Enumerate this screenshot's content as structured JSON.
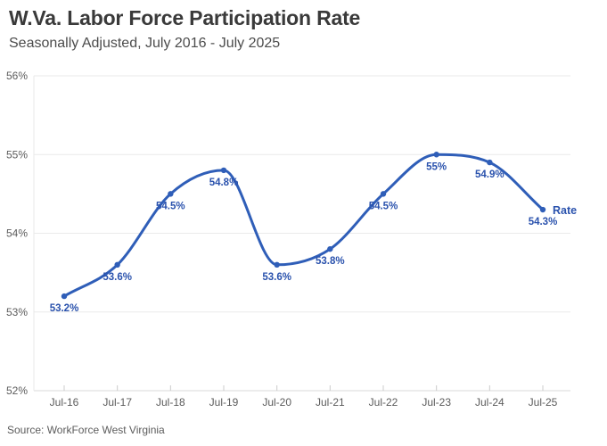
{
  "chart_data": {
    "type": "line",
    "title": "W.Va. Labor Force Participation Rate",
    "subtitle": "Seasonally Adjusted, July 2016 - July 2025",
    "source": "Source: WorkForce West Virginia",
    "xlabel": "",
    "ylabel": "",
    "categories": [
      "Jul-16",
      "Jul-17",
      "Jul-18",
      "Jul-19",
      "Jul-20",
      "Jul-21",
      "Jul-22",
      "Jul-23",
      "Jul-24",
      "Jul-25"
    ],
    "series": [
      {
        "name": "Rate",
        "values": [
          53.2,
          53.6,
          54.5,
          54.8,
          53.6,
          53.8,
          54.5,
          55.0,
          54.9,
          54.3
        ],
        "point_labels": [
          "53.2%",
          "53.6%",
          "54.5%",
          "54.8%",
          "53.6%",
          "53.8%",
          "54.5%",
          "55%",
          "54.9%",
          "54.3%"
        ]
      }
    ],
    "series_end_label": "Rate",
    "ylim": [
      52,
      56
    ],
    "yticks": [
      {
        "value": 52,
        "label": "52%"
      },
      {
        "value": 53,
        "label": "53%"
      },
      {
        "value": 54,
        "label": "54%"
      },
      {
        "value": 55,
        "label": "55%"
      },
      {
        "value": 56,
        "label": "56%"
      }
    ],
    "grid": true,
    "legend_position": "end-of-line",
    "colors": {
      "line": "#2f5eb8",
      "point_label": "#2a52ad",
      "grid": "#eaeaea",
      "axis_line": "#d8d8d8",
      "tick_mark": "#cccccc",
      "axis_text": "#5c5c5c",
      "background": "#ffffff"
    }
  }
}
